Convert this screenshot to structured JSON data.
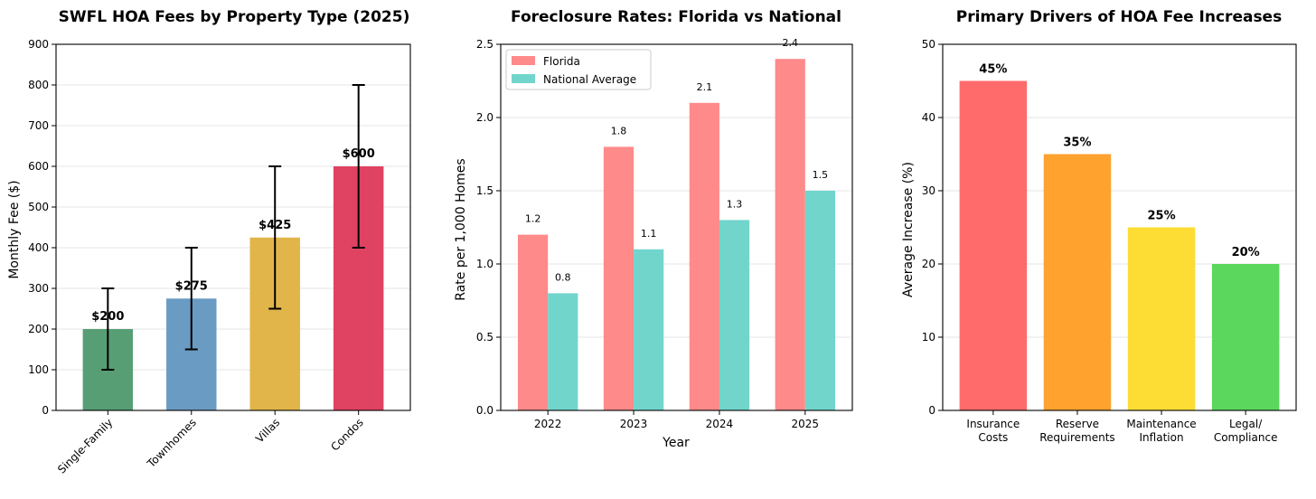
{
  "chart_data": [
    {
      "type": "bar",
      "title": "SWFL HOA Fees by Property Type (2025)",
      "xlabel": "",
      "ylabel": "Monthly Fee ($)",
      "ylim": [
        0,
        900
      ],
      "yticks": [
        0,
        100,
        200,
        300,
        400,
        500,
        600,
        700,
        800,
        900
      ],
      "categories": [
        "Single-Family",
        "Townhomes",
        "Villas",
        "Condos"
      ],
      "values": [
        200,
        275,
        425,
        600
      ],
      "error_low": [
        100,
        150,
        250,
        400
      ],
      "error_high": [
        300,
        400,
        600,
        800
      ],
      "value_labels": [
        "$200",
        "$275",
        "$425",
        "$600"
      ],
      "colors": [
        "#579e74",
        "#6a9bc3",
        "#e1b54a",
        "#e04262"
      ],
      "grid": "y"
    },
    {
      "type": "bar",
      "title": "Foreclosure Rates: Florida vs National",
      "xlabel": "Year",
      "ylabel": "Rate per 1,000 Homes",
      "ylim": [
        0,
        2.5
      ],
      "yticks": [
        "0.0",
        "0.5",
        "1.0",
        "1.5",
        "2.0",
        "2.5"
      ],
      "categories": [
        "2022",
        "2023",
        "2024",
        "2025"
      ],
      "series": [
        {
          "name": "Florida",
          "values": [
            1.2,
            1.8,
            2.1,
            2.4
          ],
          "labels": [
            "1.2",
            "1.8",
            "2.1",
            "2.4"
          ],
          "color": "#ff8a8a"
        },
        {
          "name": "National Average",
          "values": [
            0.8,
            1.1,
            1.3,
            1.5
          ],
          "labels": [
            "0.8",
            "1.1",
            "1.3",
            "1.5"
          ],
          "color": "#72d5cc"
        }
      ],
      "legend": "top-left",
      "grid": "y"
    },
    {
      "type": "bar",
      "title": "Primary Drivers of HOA Fee Increases",
      "xlabel": "",
      "ylabel": "Average Increase (%)",
      "ylim": [
        0,
        50
      ],
      "yticks": [
        0,
        10,
        20,
        30,
        40,
        50
      ],
      "categories": [
        [
          "Insurance",
          "Costs"
        ],
        [
          "Reserve",
          "Requirements"
        ],
        [
          "Maintenance",
          "Inflation"
        ],
        [
          "Legal/",
          "Compliance"
        ]
      ],
      "values": [
        45,
        35,
        25,
        20
      ],
      "value_labels": [
        "45%",
        "35%",
        "25%",
        "20%"
      ],
      "colors": [
        "#ff6b6b",
        "#ffa22e",
        "#fddc34",
        "#5ad75c"
      ],
      "grid": "y"
    }
  ]
}
